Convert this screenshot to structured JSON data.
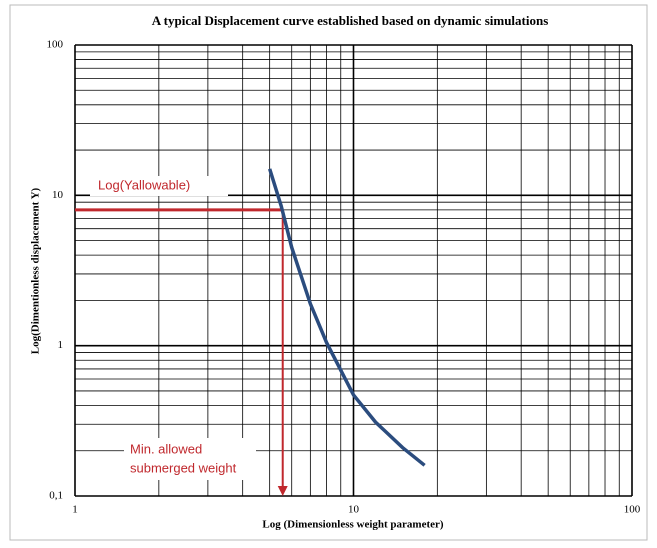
{
  "chart_data": {
    "type": "line",
    "title": "A typical Displacement curve established based on dynamic simulations",
    "x_label": "Log (Dimensionless weight parameter)",
    "y_label": "Log(Dimentionless displacement Y)",
    "x": [
      5,
      5.5,
      6,
      7,
      8,
      10,
      12,
      15,
      18
    ],
    "series": [
      {
        "color": "#2b4c7e",
        "values": [
          15,
          8.5,
          4.5,
          1.9,
          1.05,
          0.47,
          0.31,
          0.21,
          0.16
        ]
      }
    ],
    "x_scale": "log",
    "y_scale": "log",
    "xlim": [
      1,
      100
    ],
    "ylim": [
      0.1,
      100
    ],
    "xticks": [
      1,
      10,
      100
    ],
    "yticks": [
      {
        "value": 0.1,
        "label": "0,1"
      },
      1,
      10,
      100
    ],
    "grid": true,
    "minor_grid": true,
    "reference": {
      "x": 5.57,
      "y": 8,
      "color": "#c0282d",
      "y_label": "Log(Yallowable)",
      "x_label": [
        "Min. allowed",
        "submerged weight"
      ]
    }
  }
}
